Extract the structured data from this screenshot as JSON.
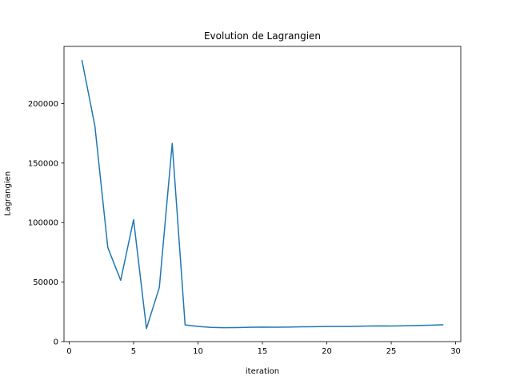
{
  "chart_data": {
    "type": "line",
    "title": "Evolution de Lagrangien",
    "xlabel": "iteration",
    "ylabel": "Lagrangien",
    "xlim": [
      -0.4,
      30.4
    ],
    "ylim": [
      0,
      248000
    ],
    "xticks": [
      0,
      5,
      10,
      15,
      20,
      25,
      30
    ],
    "yticks": [
      0,
      50000,
      100000,
      150000,
      200000
    ],
    "grid": false,
    "legend": "none",
    "series": [
      {
        "color": "#1f77b4",
        "x": [
          1,
          2,
          3,
          4,
          5,
          6,
          7,
          8,
          9,
          10,
          11,
          12,
          13,
          14,
          15,
          16,
          17,
          18,
          19,
          20,
          21,
          22,
          23,
          24,
          25,
          26,
          27,
          28,
          29
        ],
        "y": [
          236000,
          181000,
          79000,
          51500,
          102500,
          11000,
          45500,
          166500,
          14000,
          12800,
          11900,
          11700,
          11800,
          12000,
          12200,
          12100,
          12200,
          12400,
          12500,
          12700,
          12700,
          12800,
          13000,
          13200,
          13100,
          13300,
          13500,
          13800,
          14100
        ]
      }
    ]
  }
}
